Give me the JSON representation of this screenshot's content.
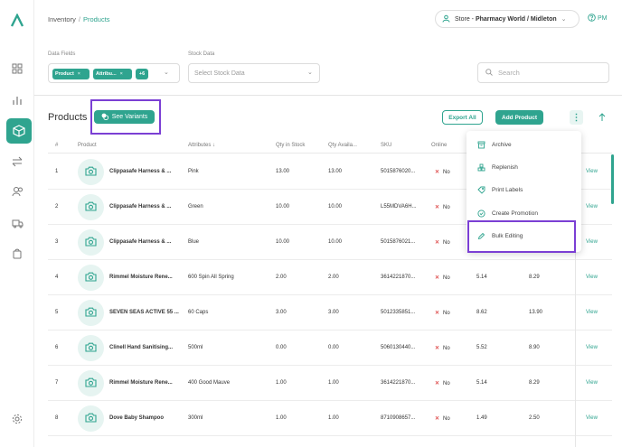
{
  "breadcrumb": {
    "root": "Inventory",
    "separator": "/",
    "current": "Products"
  },
  "store": {
    "prefix": "Store - ",
    "name": "Pharmacy World / Midleton"
  },
  "help_label": "PM",
  "filters": {
    "data_fields_label": "Data Fields",
    "data_fields_chips": [
      "Product",
      "Attribu...",
      "+6"
    ],
    "stock_data_label": "Stock Data",
    "stock_data_placeholder": "Select Stock Data",
    "search_placeholder": "Search"
  },
  "page_title": "Products",
  "see_variants_label": "See Variants",
  "export_label": "Export All",
  "add_product_label": "Add Product",
  "columns": [
    "#",
    "Product",
    "Attributes",
    "Qty in Stock",
    "Qty Availa...",
    "SKU",
    "Online"
  ],
  "rows": [
    {
      "num": "1",
      "product": "Clippasafe Harness & ...",
      "attributes": "Pink",
      "qty_stock": "13.00",
      "qty_avail": "13.00",
      "sku": "5015876020...",
      "online": "No",
      "c1": "",
      "c2": "",
      "view": "View"
    },
    {
      "num": "2",
      "product": "Clippasafe Harness & ...",
      "attributes": "Green",
      "qty_stock": "10.00",
      "qty_avail": "10.00",
      "sku": "L55MDVA6H...",
      "online": "No",
      "c1": "",
      "c2": "",
      "view": "View"
    },
    {
      "num": "3",
      "product": "Clippasafe Harness & ...",
      "attributes": "Blue",
      "qty_stock": "10.00",
      "qty_avail": "10.00",
      "sku": "5015876021...",
      "online": "No",
      "c1": "",
      "c2": "",
      "view": "View"
    },
    {
      "num": "4",
      "product": "Rimmel Moisture Rene...",
      "attributes": "600 Spin All Spring",
      "qty_stock": "2.00",
      "qty_avail": "2.00",
      "sku": "3614221870...",
      "online": "No",
      "c1": "5.14",
      "c2": "8.29",
      "view": "View"
    },
    {
      "num": "5",
      "product": "SEVEN SEAS ACTIVE 55 ...",
      "attributes": "60 Caps",
      "qty_stock": "3.00",
      "qty_avail": "3.00",
      "sku": "5012335851...",
      "online": "No",
      "c1": "8.62",
      "c2": "13.90",
      "view": "View"
    },
    {
      "num": "6",
      "product": "Clinell Hand Sanitising...",
      "attributes": "500ml",
      "qty_stock": "0.00",
      "qty_avail": "0.00",
      "sku": "5060130440...",
      "online": "No",
      "c1": "5.52",
      "c2": "8.90",
      "view": "View"
    },
    {
      "num": "7",
      "product": "Rimmel Moisture Rene...",
      "attributes": "400 Good Mauve",
      "qty_stock": "1.00",
      "qty_avail": "1.00",
      "sku": "3614221870...",
      "online": "No",
      "c1": "5.14",
      "c2": "8.29",
      "view": "View"
    },
    {
      "num": "8",
      "product": "Dove Baby Shampoo",
      "attributes": "300ml",
      "qty_stock": "1.00",
      "qty_avail": "1.00",
      "sku": "8710908657...",
      "online": "No",
      "c1": "1.49",
      "c2": "2.50",
      "view": "View"
    }
  ],
  "menu": [
    "Archive",
    "Replenish",
    "Print Labels",
    "Create Promotion",
    "Bulk Editing"
  ],
  "colors": {
    "accent": "#2fa48f",
    "highlight": "#7b3fd4",
    "no": "#e05555"
  }
}
